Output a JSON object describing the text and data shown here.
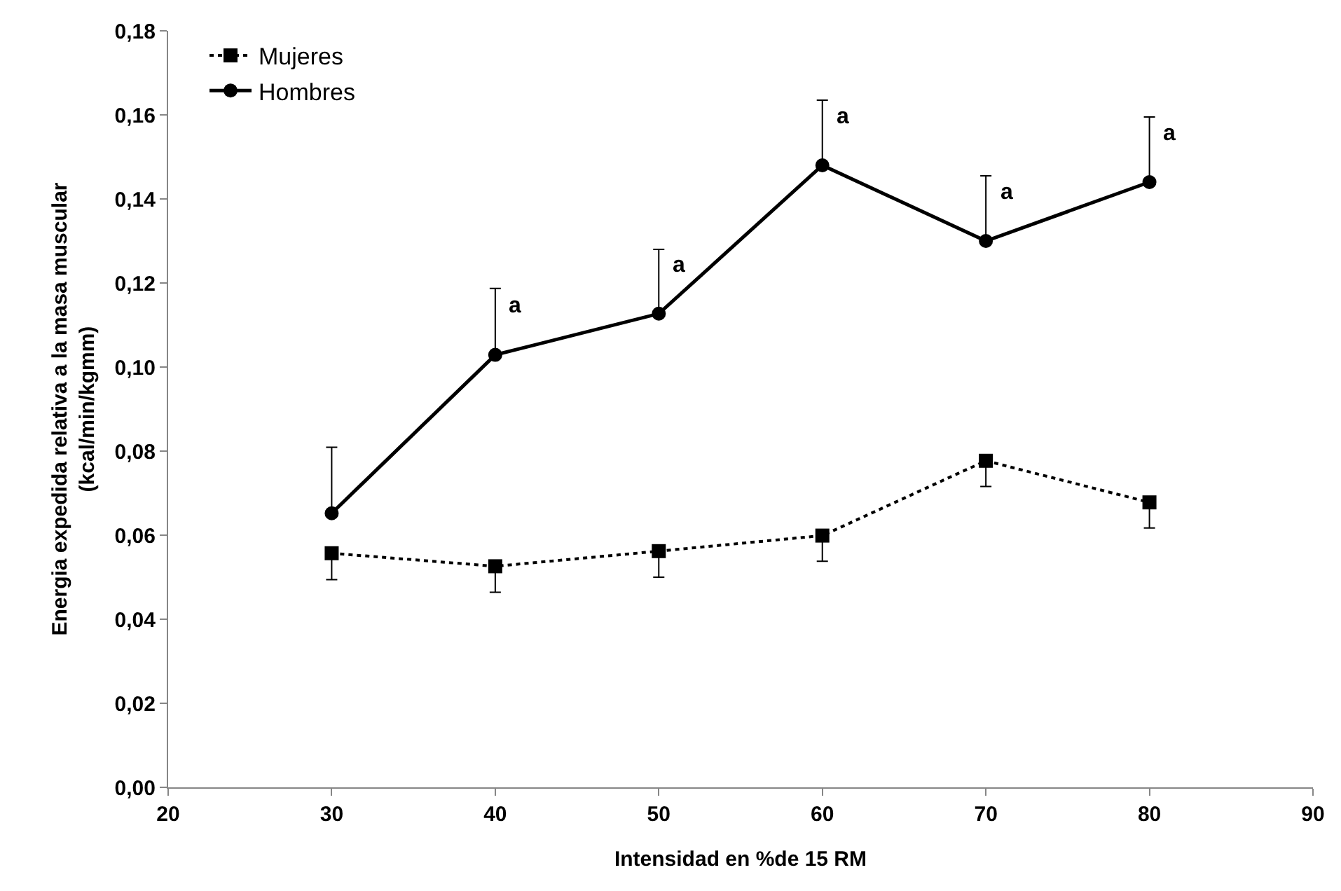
{
  "chart_data": {
    "type": "line",
    "xlabel": "Intensidad en %de 15 RM",
    "ylabel": "Energia expedida relativa a la masa muscular\n(kcal/min/kgmm)",
    "x": [
      30,
      40,
      50,
      60,
      70,
      80
    ],
    "series": [
      {
        "name": "Mujeres",
        "color": "#000000",
        "marker": "square",
        "line_style": "dotted",
        "values": [
          0.0557,
          0.0526,
          0.0562,
          0.0599,
          0.0777,
          0.0678
        ],
        "errors": [
          [
            0.0494,
            0.0557
          ],
          [
            0.0464,
            0.0526
          ],
          [
            0.05,
            0.0562
          ],
          [
            0.0538,
            0.0599
          ],
          [
            0.0716,
            0.0777
          ],
          [
            0.0617,
            0.0678
          ]
        ]
      },
      {
        "name": "Hombres",
        "color": "#000000",
        "marker": "circle",
        "line_style": "solid",
        "values": [
          0.0652,
          0.1029,
          0.1127,
          0.148,
          0.13,
          0.144
        ],
        "errors": [
          [
            0.0652,
            0.0809
          ],
          [
            0.1029,
            0.1187
          ],
          [
            0.1127,
            0.128
          ],
          [
            0.148,
            0.1635
          ],
          [
            0.13,
            0.1455
          ],
          [
            0.144,
            0.1595
          ]
        ]
      }
    ],
    "annotations": [
      {
        "text": "a",
        "x": 40,
        "y": 0.1029
      },
      {
        "text": "a",
        "x": 50,
        "y": 0.1127
      },
      {
        "text": "a",
        "x": 60,
        "y": 0.148
      },
      {
        "text": "a",
        "x": 70,
        "y": 0.13
      },
      {
        "text": "a",
        "x": 80,
        "y": 0.144
      }
    ],
    "xlim": [
      20,
      90
    ],
    "xticks": [
      20,
      30,
      40,
      50,
      60,
      70,
      80,
      90
    ],
    "ylim": [
      0,
      0.18
    ],
    "yticks": [
      {
        "value": 0,
        "label": "0,00"
      },
      {
        "value": 0.02,
        "label": "0,02"
      },
      {
        "value": 0.04,
        "label": "0,04"
      },
      {
        "value": 0.06,
        "label": "0,06"
      },
      {
        "value": 0.08,
        "label": "0,08"
      },
      {
        "value": 0.1,
        "label": "0,10"
      },
      {
        "value": 0.12,
        "label": "0,12"
      },
      {
        "value": 0.14,
        "label": "0,14"
      },
      {
        "value": 0.16,
        "label": "0,16"
      },
      {
        "value": 0.18,
        "label": "0,18"
      }
    ],
    "legend": "top left"
  }
}
